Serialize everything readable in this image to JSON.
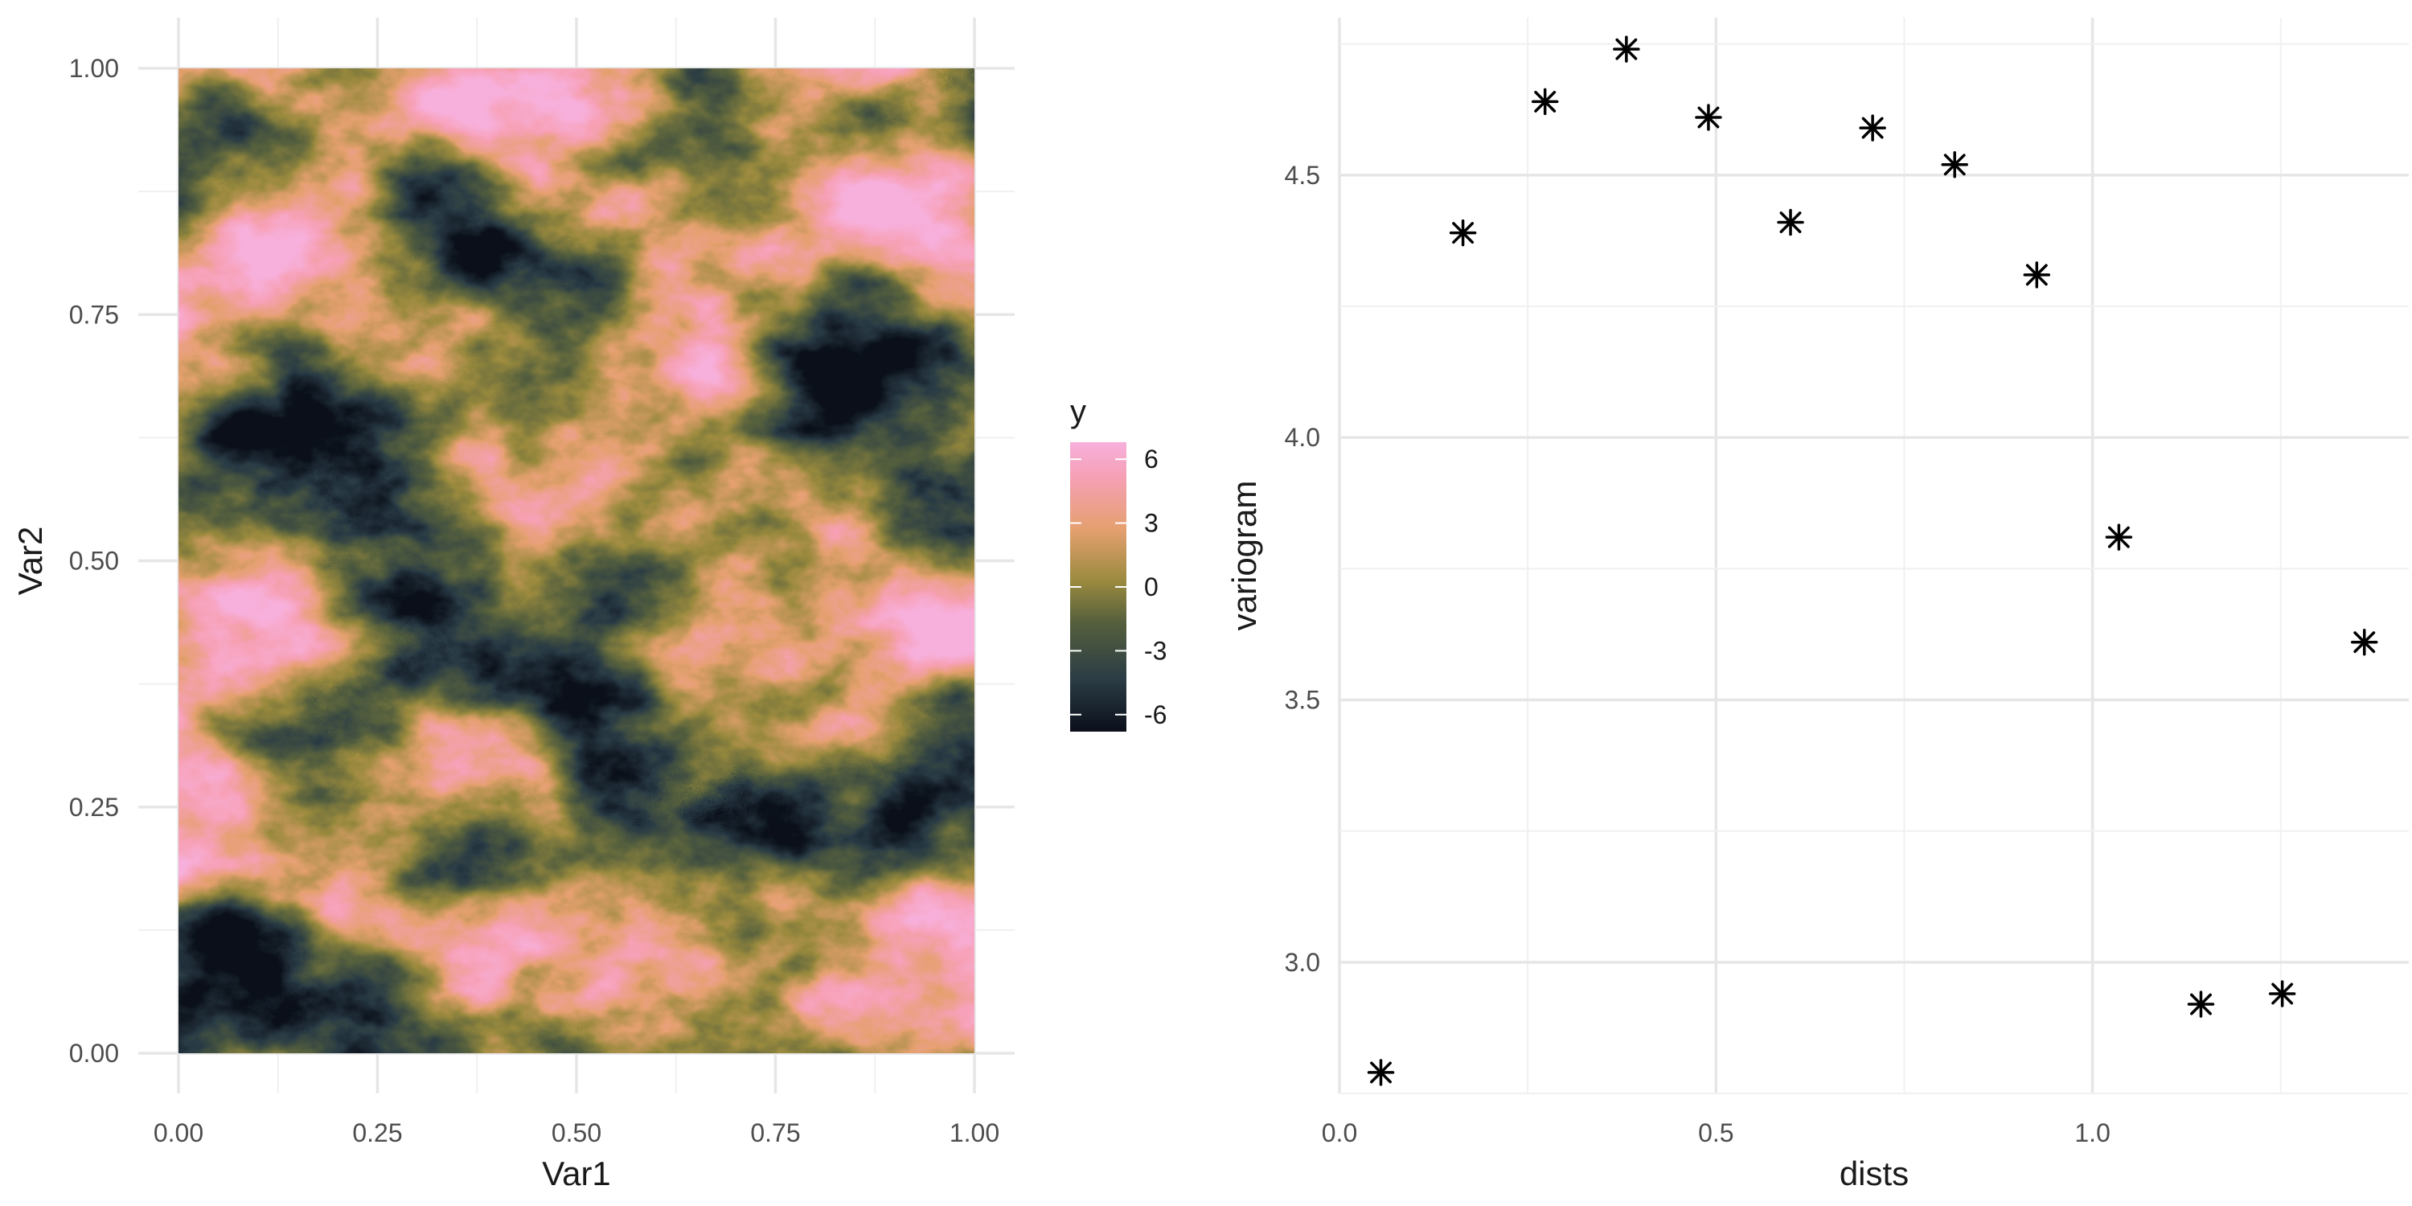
{
  "chart_data": [
    {
      "type": "heatmap",
      "xlabel": "Var1",
      "ylabel": "Var2",
      "xlim": [
        0,
        1
      ],
      "ylim": [
        0,
        1
      ],
      "xticks": [
        0,
        0.25,
        0.5,
        0.75,
        1
      ],
      "xtick_labels": [
        "0.00",
        "0.25",
        "0.50",
        "0.75",
        "1.00"
      ],
      "yticks": [
        0,
        0.25,
        0.5,
        0.75,
        1
      ],
      "ytick_labels": [
        "0.00",
        "0.25",
        "0.50",
        "0.75",
        "1.00"
      ],
      "grid": true,
      "legend": {
        "title": "y",
        "position": "right",
        "range": [
          -6.8,
          6.8
        ],
        "breaks": [
          6,
          3,
          0,
          -3,
          -6
        ],
        "break_labels": [
          "6",
          "3",
          "0",
          "-3",
          "-6"
        ],
        "colors": [
          "#0b0f1a",
          "#2a3c45",
          "#56603d",
          "#9a8a3e",
          "#e5a070",
          "#f6a0b5",
          "#f7b0dc"
        ]
      }
    },
    {
      "type": "scatter",
      "xlabel": "dists",
      "ylabel": "variogram",
      "xlim": [
        0,
        1.42
      ],
      "ylim": [
        2.75,
        4.8
      ],
      "xticks": [
        0,
        0.5,
        1.0
      ],
      "xtick_labels": [
        "0.0",
        "0.5",
        "1.0"
      ],
      "yticks": [
        3.0,
        3.5,
        4.0,
        4.5
      ],
      "ytick_labels": [
        "3.0",
        "3.5",
        "4.0",
        "4.5"
      ],
      "grid": true,
      "marker": "asterisk",
      "x": [
        0.055,
        0.164,
        0.273,
        0.381,
        0.49,
        0.599,
        0.708,
        0.817,
        0.926,
        1.035,
        1.144,
        1.252,
        1.361
      ],
      "y": [
        2.79,
        4.39,
        4.64,
        4.74,
        4.61,
        4.41,
        4.59,
        4.52,
        4.31,
        3.81,
        2.92,
        2.94,
        3.61
      ]
    }
  ]
}
